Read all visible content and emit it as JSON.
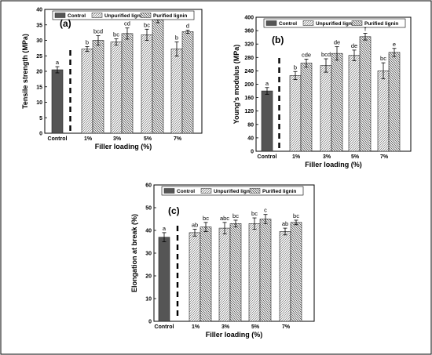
{
  "chart_data": [
    {
      "type": "bar",
      "panel_label": "(a)",
      "xlabel": "Filler loading (%)",
      "ylabel": "Tensile strength (MPa)",
      "ylim": [
        0,
        40
      ],
      "yticks": [
        "0",
        "5",
        "10",
        "15",
        "20",
        "25",
        "30",
        "35",
        "40"
      ],
      "legend": [
        "Control",
        "Unpurified lignin",
        "Purified lignin"
      ],
      "legend_position": "top",
      "control": {
        "label": "Control",
        "value": 20.5,
        "err": 1.0,
        "sig": "a"
      },
      "categories": [
        "1%",
        "3%",
        "5%",
        "7%"
      ],
      "series": [
        {
          "name": "Unpurified lignin",
          "values": [
            27.2,
            29.5,
            31.8,
            27.2
          ],
          "errors": [
            0.8,
            1.0,
            1.8,
            2.3
          ],
          "sig": [
            "b",
            "bc",
            "bc",
            "b"
          ]
        },
        {
          "name": "Purified lignin",
          "values": [
            30.0,
            32.2,
            36.7,
            32.8
          ],
          "errors": [
            1.5,
            1.8,
            1.0,
            0.5
          ],
          "sig": [
            "bcd",
            "cd",
            "e",
            "d"
          ]
        }
      ]
    },
    {
      "type": "bar",
      "panel_label": "(b)",
      "xlabel": "Filler loading (%)",
      "ylabel": "Young's modulus (MPa)",
      "ylim": [
        0,
        400
      ],
      "yticks": [
        "0",
        "40",
        "80",
        "120",
        "160",
        "200",
        "240",
        "280",
        "320",
        "360",
        "400"
      ],
      "legend": [
        "Control",
        "Unpurified lignin",
        "Purified lignin"
      ],
      "legend_position": "top",
      "control": {
        "label": "Control",
        "value": 180,
        "err": 10,
        "sig": "a"
      },
      "categories": [
        "1%",
        "3%",
        "5%",
        "7%"
      ],
      "series": [
        {
          "name": "Unpurified lignin",
          "values": [
            226,
            256,
            286,
            240
          ],
          "errors": [
            12,
            20,
            16,
            24
          ],
          "sig": [
            "b",
            "bcd",
            "de",
            "bc"
          ]
        },
        {
          "name": "Purified lignin",
          "values": [
            263,
            292,
            342,
            295
          ],
          "errors": [
            12,
            20,
            10,
            12
          ],
          "sig": [
            "cde",
            "de",
            "f",
            "e"
          ]
        }
      ]
    },
    {
      "type": "bar",
      "panel_label": "(c)",
      "xlabel": "Filler loading (%)",
      "ylabel": "Elongation at break (%)",
      "ylim": [
        0,
        60
      ],
      "yticks": [
        "0",
        "10",
        "20",
        "30",
        "40",
        "50",
        "60"
      ],
      "legend": [
        "Control",
        "Unpurified lignin",
        "Purified lignin"
      ],
      "legend_position": "top",
      "control": {
        "label": "Control",
        "value": 37.0,
        "err": 2.0,
        "sig": "a"
      },
      "categories": [
        "1%",
        "3%",
        "5%",
        "7%"
      ],
      "series": [
        {
          "name": "Unpurified lignin",
          "values": [
            39.0,
            41.0,
            43.0,
            39.5
          ],
          "errors": [
            1.5,
            2.5,
            2.5,
            1.5
          ],
          "sig": [
            "ab",
            "abc",
            "bc",
            "ab"
          ]
        },
        {
          "name": "Purified lignin",
          "values": [
            41.5,
            43.0,
            45.0,
            43.5
          ],
          "errors": [
            2.0,
            1.5,
            2.0,
            1.0
          ],
          "sig": [
            "bc",
            "bc",
            "c",
            "bc"
          ]
        }
      ]
    }
  ]
}
